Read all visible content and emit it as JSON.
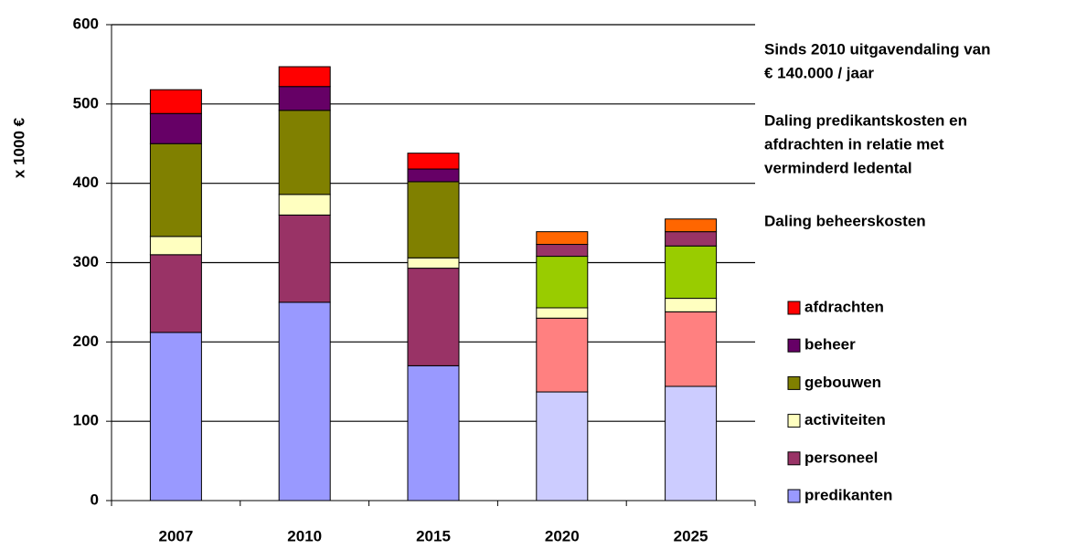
{
  "chart_data": {
    "type": "stacked_bar",
    "y_label": "x 1000 €",
    "categories": [
      "2007",
      "2010",
      "2015",
      "2020",
      "2025"
    ],
    "series": [
      {
        "name": "predikanten",
        "color": "#9999ff",
        "colors": [
          "#9999ff",
          "#9999ff",
          "#9999ff",
          "#ccccff",
          "#ccccff"
        ],
        "values": [
          212,
          250,
          170,
          137,
          144
        ]
      },
      {
        "name": "personeel",
        "color": "#993366",
        "colors": [
          "#993366",
          "#993366",
          "#993366",
          "#ff8080",
          "#ff8080"
        ],
        "values": [
          98,
          110,
          123,
          93,
          94
        ]
      },
      {
        "name": "activiteiten",
        "color": "#ffffc0",
        "colors": [
          "#ffffc0",
          "#ffffc0",
          "#ffffc0",
          "#ffffc0",
          "#ffffc0"
        ],
        "values": [
          23,
          26,
          13,
          13,
          17
        ]
      },
      {
        "name": "gebouwen",
        "color": "#808000",
        "colors": [
          "#808000",
          "#808000",
          "#808000",
          "#99cc00",
          "#99cc00"
        ],
        "values": [
          117,
          106,
          96,
          65,
          66
        ]
      },
      {
        "name": "beheer",
        "color": "#660066",
        "colors": [
          "#660066",
          "#660066",
          "#660066",
          "#993366",
          "#993366"
        ],
        "values": [
          38,
          30,
          16,
          15,
          18
        ]
      },
      {
        "name": "afdrachten",
        "color": "#ff0000",
        "colors": [
          "#ff0000",
          "#ff0000",
          "#ff0000",
          "#ff6600",
          "#ff6600"
        ],
        "values": [
          30,
          25,
          20,
          16,
          16
        ]
      }
    ],
    "ylim": [
      0,
      600
    ],
    "yticks": [
      0,
      100,
      200,
      300,
      400,
      500,
      600
    ],
    "grid": true,
    "annotations": [
      [
        "Sinds 2010 uitgavendaling van",
        "€ 140.000 / jaar"
      ],
      [
        "Daling predikantskosten en",
        "afdrachten in relatie met",
        "verminderd ledental"
      ],
      [
        "Daling beheerskosten"
      ]
    ]
  }
}
